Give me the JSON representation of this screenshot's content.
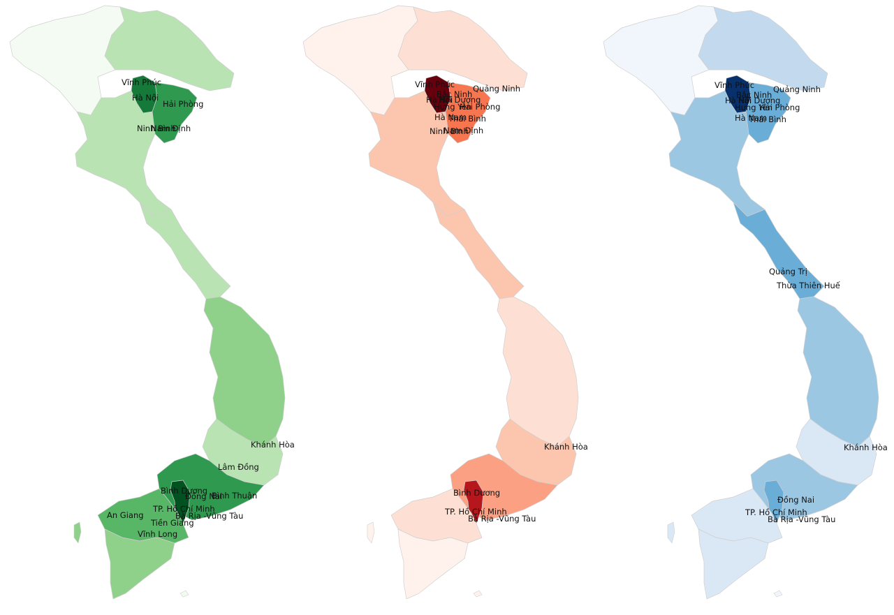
{
  "maps": [
    {
      "id": "green",
      "colors": {
        "scale": [
          "#f4fbf2",
          "#d9f0d3",
          "#b9e3b3",
          "#8fd18a",
          "#58b667",
          "#2f9a4f",
          "#15793a",
          "#005221"
        ],
        "outline": "#cfcfcf"
      },
      "region_levels": {
        "north_west": 0,
        "north_east": 2,
        "hanoi_core": 6,
        "red_delta": 5,
        "north_central": 2,
        "coast": 2,
        "central_band": 3,
        "highlands": 2,
        "south_east": 5,
        "ho_chi_minh": 7,
        "mekong": 4,
        "mekong_south": 3
      },
      "labels": [
        "Vĩnh Phúc",
        "Hà Nội",
        "Hải Phòng",
        "Ninh Bình",
        "Nam Định",
        "Khánh Hòa",
        "Lâm Đồng",
        "Bình Dương",
        "Đồng Nai",
        "Bình Thuận",
        "An Giang",
        "TP. Hồ Chí Minh",
        "Bà Rịa -Vũng Tàu",
        "Tiền Giang",
        "Vĩnh Long"
      ]
    },
    {
      "id": "red",
      "colors": {
        "scale": [
          "#fff1ec",
          "#fde0d3",
          "#fcc5ae",
          "#fba083",
          "#f7764f",
          "#e2452f",
          "#b5171d",
          "#67000d"
        ],
        "outline": "#cfcfcf"
      },
      "region_levels": {
        "north_west": 0,
        "north_east": 1,
        "hanoi_core": 7,
        "red_delta": 4,
        "north_central": 2,
        "coast": 2,
        "central_band": 1,
        "highlands": 2,
        "south_east": 3,
        "ho_chi_minh": 6,
        "mekong": 1,
        "mekong_south": 0
      },
      "labels": [
        "Vĩnh Phúc",
        "Bắc Ninh",
        "Quảng Ninh",
        "Hà Nội",
        "Hải Dương",
        "Hưng Yên",
        "Hải Phòng",
        "Hà Nam",
        "Thái Bình",
        "Ninh Bình",
        "Nam Định",
        "Khánh Hòa",
        "Bình Dương",
        "TP. Hồ Chí Minh",
        "Bà Rịa -Vũng Tàu"
      ]
    },
    {
      "id": "blue",
      "colors": {
        "scale": [
          "#f1f6fc",
          "#dae8f6",
          "#c2d9ee",
          "#9cc7e3",
          "#6aaed8",
          "#3e8ec4",
          "#1b66ab",
          "#08306b"
        ],
        "outline": "#cfcfcf"
      },
      "region_levels": {
        "north_west": 0,
        "north_east": 2,
        "hanoi_core": 7,
        "red_delta": 4,
        "north_central": 3,
        "coast": 4,
        "central_band": 3,
        "highlands": 1,
        "south_east": 3,
        "ho_chi_minh": 4,
        "mekong": 1,
        "mekong_south": 1
      },
      "labels": [
        "Vĩnh Phúc",
        "Bắc Ninh",
        "Quảng Ninh",
        "Hà Nội",
        "Hải Dương",
        "Hưng Yên",
        "Hải Phòng",
        "Hà Nam",
        "Thái Bình",
        "Quảng Trị",
        "Thừa Thiên Huế",
        "Khánh Hòa",
        "Đồng Nai",
        "TP. Hồ Chí Minh",
        "Bà Rịa -Vũng Tàu"
      ]
    }
  ]
}
